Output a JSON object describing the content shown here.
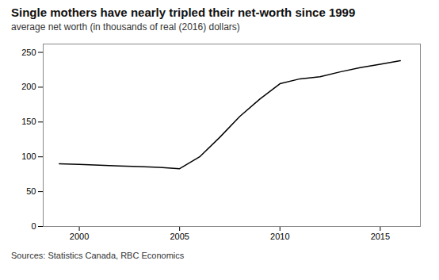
{
  "chart_data": {
    "type": "line",
    "title": "Single mothers have nearly tripled their net-worth since 1999",
    "subtitle": "average net worth (in thousands of real (2016) dollars)",
    "source": "Sources: Statistics Canada, RBC Economics",
    "x": [
      1999,
      2000,
      2001,
      2002,
      2003,
      2004,
      2005,
      2006,
      2007,
      2008,
      2009,
      2010,
      2011,
      2012,
      2013,
      2014,
      2015,
      2016
    ],
    "values": [
      90,
      89,
      88,
      87,
      86,
      85,
      83,
      100,
      128,
      158,
      183,
      205,
      212,
      215,
      222,
      228,
      233,
      238
    ],
    "xlim": [
      1998.2,
      2017.0
    ],
    "ylim": [
      0,
      262
    ],
    "xticks": [
      2000,
      2005,
      2010,
      2015
    ],
    "yticks": [
      0,
      50,
      100,
      150,
      200,
      250
    ],
    "grid": false
  }
}
